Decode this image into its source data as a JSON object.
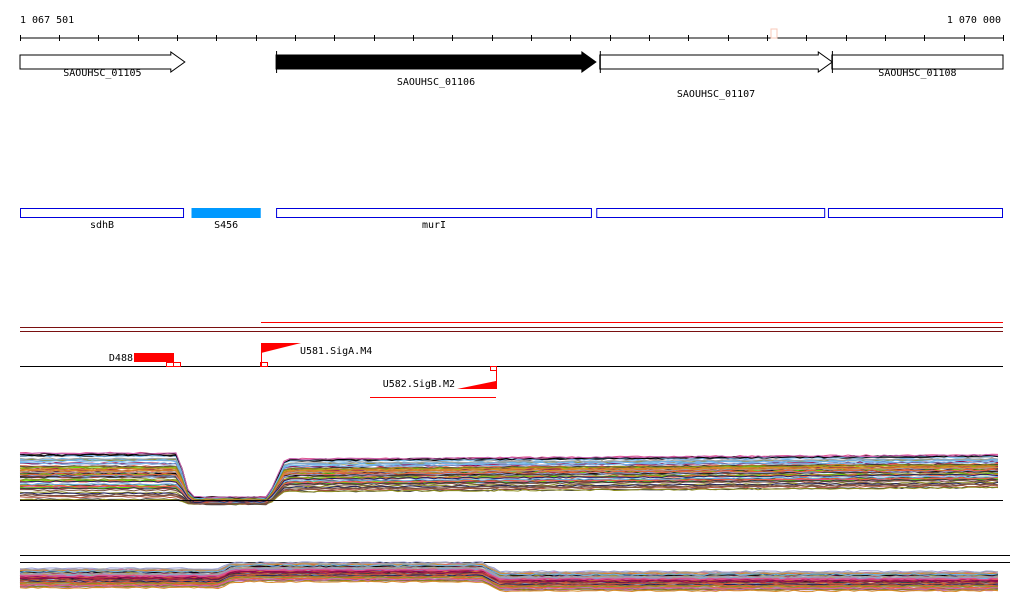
{
  "ruler": {
    "start_label": "1 067 501",
    "end_label": "1 070 000",
    "start": 1067501,
    "end": 1070000,
    "tick_interval_bp": 100
  },
  "annotation_genes": [
    {
      "name": "SAOUHSC_01105",
      "start": 1067501,
      "end": 1067920,
      "strand": "+",
      "highlight": false
    },
    {
      "name": "SAOUHSC_01106",
      "start": 1068152,
      "end": 1068965,
      "strand": "+",
      "highlight": true
    },
    {
      "name": "SAOUHSC_01107",
      "start": 1068975,
      "end": 1069566,
      "strand": "+",
      "highlight": false
    },
    {
      "name": "SAOUHSC_01108",
      "start": 1069565,
      "end": 1070000,
      "strand": "+",
      "highlight": false
    }
  ],
  "features": [
    {
      "name": "sdhB",
      "start": 1067501,
      "end": 1067918,
      "filled": false
    },
    {
      "name": "S456",
      "start": 1067937,
      "end": 1068113,
      "filled": true
    },
    {
      "name": "murI",
      "start": 1068152,
      "end": 1068955,
      "filled": false
    },
    {
      "name": "",
      "start": 1068966,
      "end": 1069548,
      "filled": false
    },
    {
      "name": "",
      "start": 1069555,
      "end": 1070000,
      "filled": false
    }
  ],
  "signals": {
    "d488": {
      "label": "D488"
    },
    "u581": {
      "label": "U581.SigA.M4"
    },
    "u582": {
      "label": "U582.SigB.M2"
    }
  },
  "colors": {
    "feature_outline": "#0000dd",
    "feature_fill": "#0099ff",
    "signal": "#ff0000",
    "highlight_marker": "#f8c8b8"
  },
  "expression_palette": [
    "#000000",
    "#6cb4e8",
    "#c864b4",
    "#8b0a50",
    "#e8603c",
    "#9aa0d8",
    "#8c8c1e",
    "#66dd00",
    "#d24040",
    "#b4503c",
    "#a0a0a0",
    "#202060",
    "#d88c28",
    "#7a5040",
    "#e05090",
    "#3a3a3a"
  ]
}
